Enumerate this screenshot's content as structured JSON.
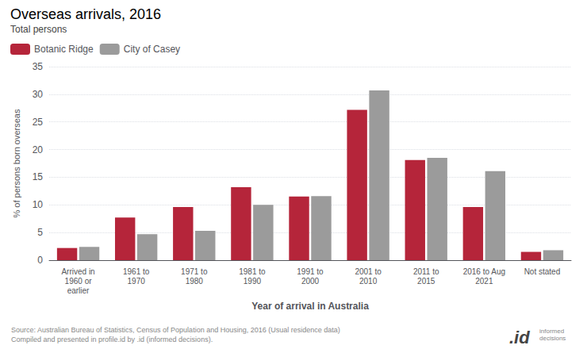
{
  "chart_data": {
    "type": "bar",
    "title": "Overseas arrivals, 2016",
    "subtitle": "Total persons",
    "xlabel": "Year of arrival in Australia",
    "ylabel": "% of persons born overseas",
    "categories": [
      "Arrived in\n1960 or\nearlier",
      "1961 to\n1970",
      "1971 to\n1980",
      "1981 to\n1990",
      "1991 to\n2000",
      "2001 to\n2010",
      "2011 to\n2015",
      "2016 to Aug\n2021",
      "Not stated"
    ],
    "series": [
      {
        "name": "Botanic Ridge",
        "color": "#b5253a",
        "values": [
          2.2,
          7.7,
          9.6,
          13.2,
          11.5,
          27.2,
          18.1,
          9.6,
          1.5
        ]
      },
      {
        "name": "City of Casey",
        "color": "#9b9b9b",
        "values": [
          2.4,
          4.7,
          5.3,
          10.0,
          11.6,
          30.7,
          18.5,
          16.1,
          1.8
        ]
      }
    ],
    "ylim": [
      0,
      35
    ],
    "yticks": [
      0,
      5,
      10,
      15,
      20,
      25,
      30,
      35
    ],
    "grid": true,
    "legend": "upper left",
    "annotations": [
      "Source: Australian Bureau of Statistics, Census of Population and Housing, 2016 (Usual residence data)\nCompiled and presented in profile.id by .id (informed decisions).",
      ".id",
      "informed\ndecisions"
    ]
  }
}
